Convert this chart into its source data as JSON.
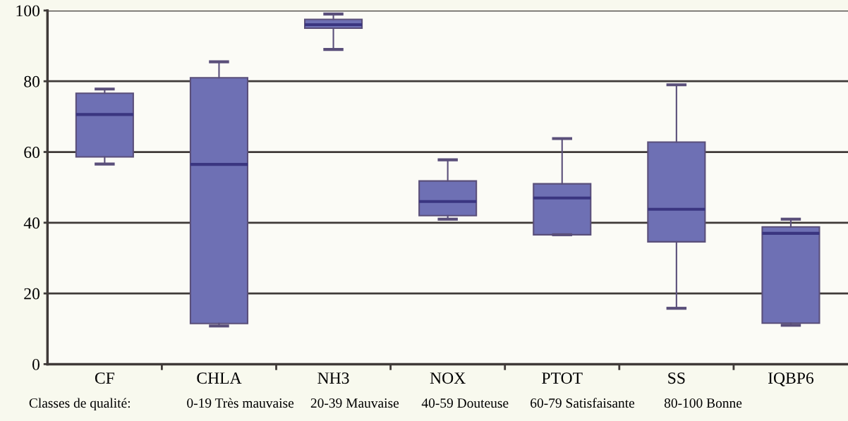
{
  "chart_data": {
    "type": "box",
    "categories": [
      "CF",
      "CHLA",
      "NH3",
      "NOX",
      "PTOT",
      "SS",
      "IQBP6"
    ],
    "boxes": [
      {
        "low": 56.6,
        "q1": 58.6,
        "median": 70.6,
        "q3": 76.6,
        "high": 77.8
      },
      {
        "low": 10.8,
        "q1": 11.5,
        "median": 56.5,
        "q3": 81,
        "high": 85.5
      },
      {
        "low": 89,
        "q1": 95,
        "median": 96,
        "q3": 97.5,
        "high": 99
      },
      {
        "low": 41,
        "q1": 42,
        "median": 46,
        "q3": 51.8,
        "high": 57.8
      },
      {
        "low": 36.6,
        "q1": 36.6,
        "median": 47,
        "q3": 51,
        "high": 63.8
      },
      {
        "low": 15.8,
        "q1": 34.6,
        "median": 43.8,
        "q3": 62.8,
        "high": 79
      },
      {
        "low": 11,
        "q1": 11.6,
        "median": 37,
        "q3": 38.8,
        "high": 41
      }
    ],
    "color": "#6e70b4",
    "ylim": [
      0,
      100
    ],
    "yticks": [
      0,
      20,
      40,
      60,
      80,
      100
    ],
    "grid": "y",
    "annotations": [
      "Classes de qualité:",
      "0-19 Très mauvaise",
      "20-39 Mauvaise",
      "40-59 Douteuse",
      "60-79 Satisfaisante",
      "80-100 Bonne"
    ]
  }
}
